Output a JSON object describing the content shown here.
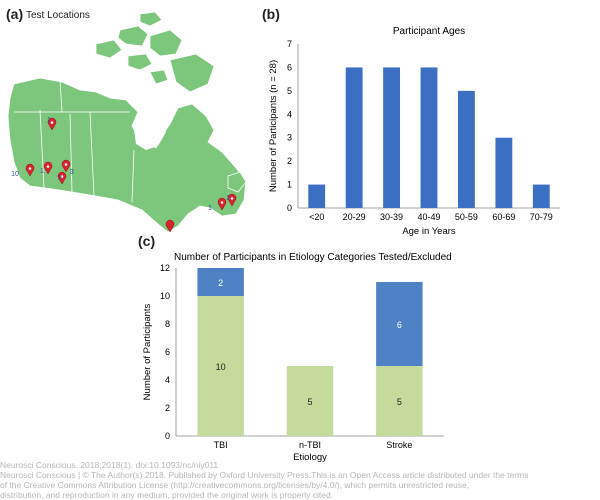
{
  "panels": {
    "a": "(a)",
    "b": "(b)",
    "c": "(c)"
  },
  "map": {
    "title": "Test Locations",
    "markers": [
      {
        "label": "1"
      },
      {
        "label": "10"
      },
      {
        "label": "1"
      },
      {
        "label": "3"
      },
      {
        "label": "2"
      },
      {
        "label": "1"
      },
      {
        "label": "1"
      }
    ],
    "colors": {
      "land": "#7dc77d",
      "border": "#ffffff",
      "water": "#ffffff",
      "marker": "#d9232d",
      "marker_label": "#2a4fa0"
    }
  },
  "chart_data": [
    {
      "type": "bar",
      "title": "Participant Ages",
      "categories": [
        "<20",
        "20-29",
        "30-39",
        "40-49",
        "50-59",
        "60-69",
        "70-79"
      ],
      "values": [
        1,
        6,
        6,
        6,
        5,
        3,
        1
      ],
      "xlabel": "Age in Years",
      "ylabel": "Number of Participants (n = 28)",
      "ylim": [
        0,
        7
      ],
      "yticks": [
        "0",
        "1",
        "2",
        "3",
        "4",
        "5",
        "6",
        "7"
      ],
      "color": "#3a6fc4"
    },
    {
      "type": "bar",
      "stacked": true,
      "title": "Number of Participants in Etiology Categories Tested/Excluded",
      "categories": [
        "TBI",
        "n-TBI",
        "Stroke"
      ],
      "series": [
        {
          "name": "Tested",
          "values": [
            10,
            5,
            5
          ],
          "labels": [
            "10",
            "5",
            "5"
          ],
          "color": "#c5db9c"
        },
        {
          "name": "Excluded",
          "values": [
            2,
            0,
            6
          ],
          "labels": [
            "2",
            "",
            "6"
          ],
          "color": "#4f82c5"
        }
      ],
      "xlabel": "Etiology",
      "ylabel": "Number of Participants",
      "ylim": [
        0,
        12
      ],
      "yticks": [
        "0",
        "2",
        "4",
        "6",
        "8",
        "10",
        "12"
      ]
    }
  ],
  "footer": {
    "line1": "Neurosci Conscious. 2018;2018(1). doi:10.1093/nc/niy011",
    "line2": "Neurosci Conscious | © The Author(s) 2018. Published by Oxford University Press.This is an Open Access article distributed under the terms",
    "line3": "of the Creative Commons Attribution License (http://creativecommons.org/licenses/by/4.0/), which permits unrestricted reuse,",
    "line4": "distribution, and reproduction in any medium, provided the original work is properly cited."
  }
}
